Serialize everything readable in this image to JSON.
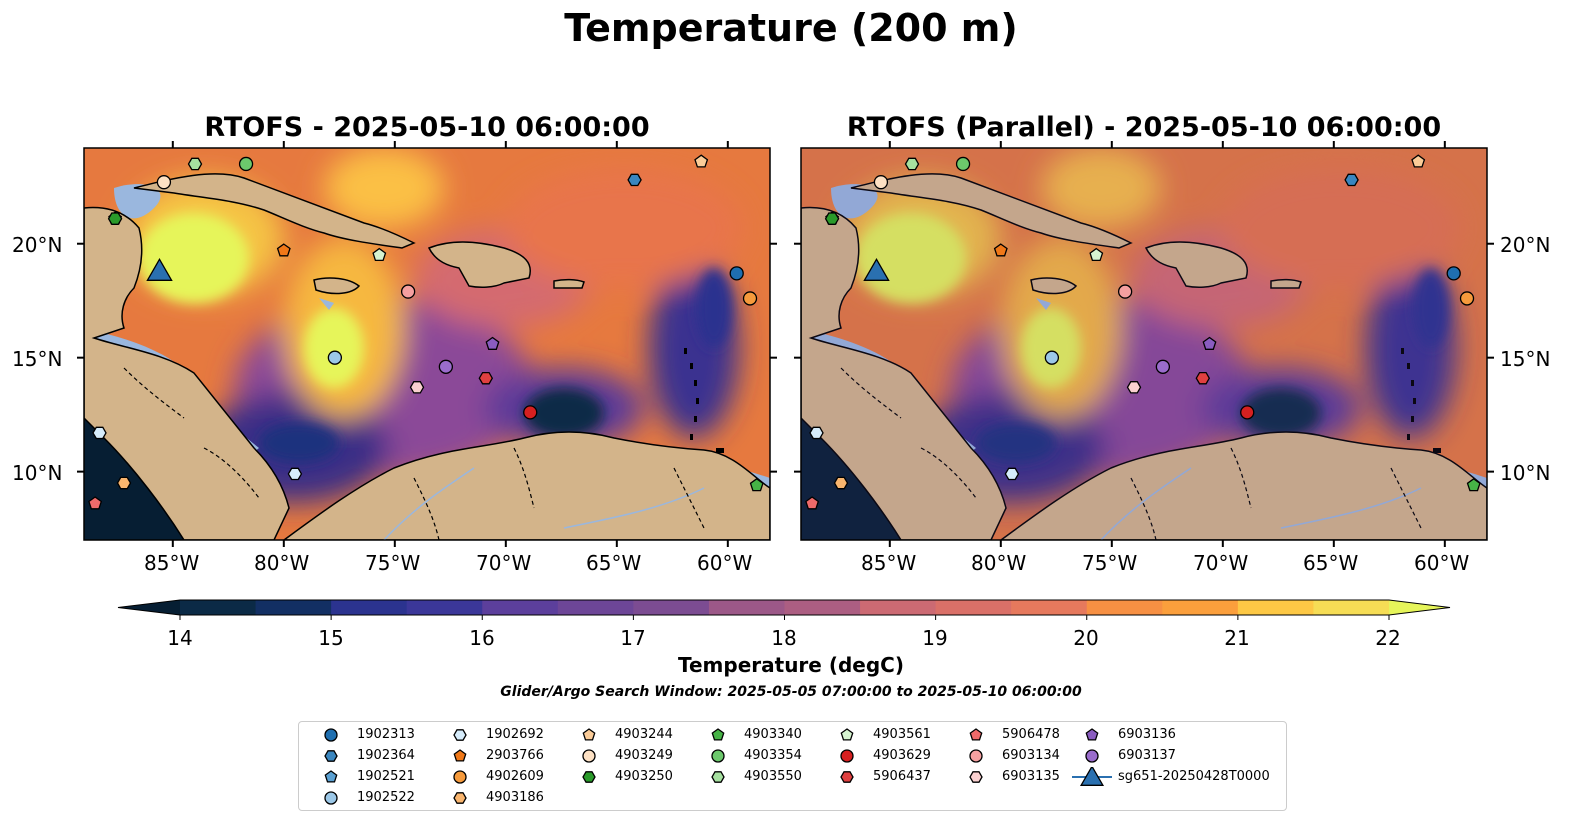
{
  "figure": {
    "title": "Temperature (200 m)",
    "panels": [
      {
        "title": "RTOFS - 2025-05-10 06:00:00"
      },
      {
        "title": "RTOFS (Parallel) - 2025-05-10 06:00:00"
      }
    ],
    "lon_ticks": [
      "85°W",
      "80°W",
      "75°W",
      "70°W",
      "65°W",
      "60°W"
    ],
    "lat_ticks": [
      "20°N",
      "15°N",
      "10°N"
    ],
    "colorbar": {
      "label": "Temperature (degC)",
      "ticks": [
        "14",
        "15",
        "16",
        "17",
        "18",
        "19",
        "20",
        "21",
        "22"
      ],
      "colors": [
        "#0b2a46",
        "#122f63",
        "#1c307e",
        "#2b338f",
        "#3b3799",
        "#4b3a9c",
        "#5c3f9c",
        "#6d4697",
        "#7c4c92",
        "#8c528e",
        "#9c5888",
        "#ac5e82",
        "#bc637c",
        "#cc6a73",
        "#da7068",
        "#e6795d",
        "#f08350",
        "#f79043",
        "#fb9f3c",
        "#fdb23c",
        "#fdc845",
        "#f6dd55"
      ],
      "under_color": "#061e33",
      "over_color": "#e6f55a"
    },
    "search_window": "Glider/Argo Search Window: 2025-05-05 07:00:00 to 2025-05-10 06:00:00"
  },
  "map_colors": {
    "land": "#d3b48a",
    "shelf": "#9ab7de",
    "coast": "#000000"
  },
  "legend": [
    {
      "id": "1902313",
      "marker": "circle",
      "color": "#1f6fb0"
    },
    {
      "id": "1902364",
      "marker": "hexagon",
      "color": "#3a86bf"
    },
    {
      "id": "1902521",
      "marker": "pentagon",
      "color": "#5aa0d2"
    },
    {
      "id": "1902522",
      "marker": "circle",
      "color": "#9cc8e8"
    },
    {
      "id": "1902692",
      "marker": "hexagon",
      "color": "#d6ecfb"
    },
    {
      "id": "2903766",
      "marker": "pentagon",
      "color": "#f07818"
    },
    {
      "id": "4902609",
      "marker": "circle",
      "color": "#f59a3c"
    },
    {
      "id": "4903186",
      "marker": "hexagon",
      "color": "#f9b56e"
    },
    {
      "id": "4903244",
      "marker": "pentagon",
      "color": "#fbcc98"
    },
    {
      "id": "4903249",
      "marker": "circle",
      "color": "#fde1c4"
    },
    {
      "id": "4903250",
      "marker": "hexagon",
      "color": "#2a9a2a"
    },
    {
      "id": "4903340",
      "marker": "pentagon",
      "color": "#46b446"
    },
    {
      "id": "4903354",
      "marker": "circle",
      "color": "#6cc86c"
    },
    {
      "id": "4903550",
      "marker": "hexagon",
      "color": "#a6e0a0"
    },
    {
      "id": "4903561",
      "marker": "pentagon",
      "color": "#d6f4d0"
    },
    {
      "id": "4903629",
      "marker": "circle",
      "color": "#d62020"
    },
    {
      "id": "5906437",
      "marker": "hexagon",
      "color": "#e04040"
    },
    {
      "id": "5906478",
      "marker": "pentagon",
      "color": "#ee6a6a"
    },
    {
      "id": "6903134",
      "marker": "circle",
      "color": "#f5a0a0"
    },
    {
      "id": "6903135",
      "marker": "hexagon",
      "color": "#fad0d0"
    },
    {
      "id": "6903136",
      "marker": "pentagon",
      "color": "#8a5cc0"
    },
    {
      "id": "6903137",
      "marker": "circle",
      "color": "#9a6ccc"
    },
    {
      "id": "sg651-20250428T0000",
      "marker": "triangle",
      "color": "#2a70b0"
    }
  ],
  "floats_left": [
    {
      "id": "1902313",
      "lon": -59.6,
      "lat": 18.7
    },
    {
      "id": "1902364",
      "lon": -64.2,
      "lat": 22.8
    },
    {
      "id": "1902521",
      "lon": -87.6,
      "lat": 21.1
    },
    {
      "id": "1902522",
      "lon": -77.7,
      "lat": 15.0
    },
    {
      "id": "1902692",
      "lon": -88.3,
      "lat": 11.7
    },
    {
      "id": "2903766",
      "lon": -80.0,
      "lat": 19.7
    },
    {
      "id": "4902609",
      "lon": -59.0,
      "lat": 17.6
    },
    {
      "id": "4903186",
      "lon": -87.2,
      "lat": 9.5
    },
    {
      "id": "4903244",
      "lon": -61.2,
      "lat": 23.6
    },
    {
      "id": "4903249",
      "lon": -85.4,
      "lat": 22.7
    },
    {
      "id": "4903250",
      "lon": -87.6,
      "lat": 21.1
    },
    {
      "id": "4903340",
      "lon": -58.7,
      "lat": 9.4
    },
    {
      "id": "4903354",
      "lon": -81.7,
      "lat": 23.5
    },
    {
      "id": "4903550",
      "lon": -84.0,
      "lat": 23.5
    },
    {
      "id": "4903561",
      "lon": -75.7,
      "lat": 19.5
    },
    {
      "id": "4903629",
      "lon": -68.9,
      "lat": 12.6
    },
    {
      "id": "5906437",
      "lon": -70.9,
      "lat": 14.1
    },
    {
      "id": "5906478",
      "lon": -88.5,
      "lat": 8.6
    },
    {
      "id": "6903134",
      "lon": -74.4,
      "lat": 17.9
    },
    {
      "id": "6903135",
      "lon": -74.0,
      "lat": 13.7
    },
    {
      "id": "6903136",
      "lon": -70.6,
      "lat": 15.6
    },
    {
      "id": "6903137",
      "lon": -72.7,
      "lat": 14.6
    },
    {
      "id": "1902692b",
      "legend": "1902692",
      "lon": -79.5,
      "lat": 9.9
    },
    {
      "id": "sg651-20250428T0000",
      "lon": -85.6,
      "lat": 18.7
    }
  ]
}
